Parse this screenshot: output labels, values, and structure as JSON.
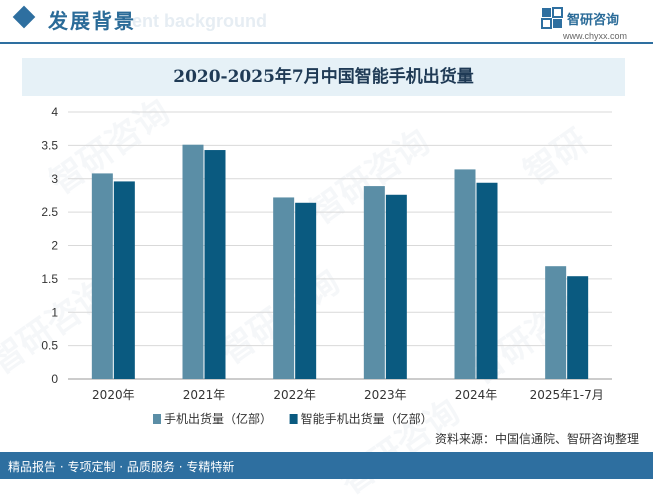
{
  "header": {
    "title": "发展背景",
    "subtitle": "ment background",
    "brand_name": "智研咨询",
    "brand_url": "www.chyxx.com"
  },
  "footer": {
    "tagline": "精品报告 · 专项定制 · 品质服务 · 专精特新",
    "source": "资料来源：中国信通院、智研咨询整理"
  },
  "colors": {
    "series1": "#5b8ea6",
    "series2": "#0a5a80",
    "accent": "#2e6fa0"
  },
  "chart_data": {
    "type": "bar",
    "title": "2020-2025年7月中国智能手机出货量",
    "categories": [
      "2020年",
      "2021年",
      "2022年",
      "2023年",
      "2024年",
      "2025年1-7月"
    ],
    "series": [
      {
        "name": "手机出货量（亿部）",
        "values": [
          3.08,
          3.51,
          2.72,
          2.89,
          3.14,
          1.69
        ]
      },
      {
        "name": "智能手机出货量（亿部）",
        "values": [
          2.96,
          3.43,
          2.64,
          2.76,
          2.94,
          1.54
        ]
      }
    ],
    "ylim": [
      0,
      4
    ],
    "yticks": [
      "0",
      "0.5",
      "1",
      "1.5",
      "2",
      "2.5",
      "3",
      "3.5",
      "4"
    ],
    "grid": true,
    "legend": "bottom"
  }
}
